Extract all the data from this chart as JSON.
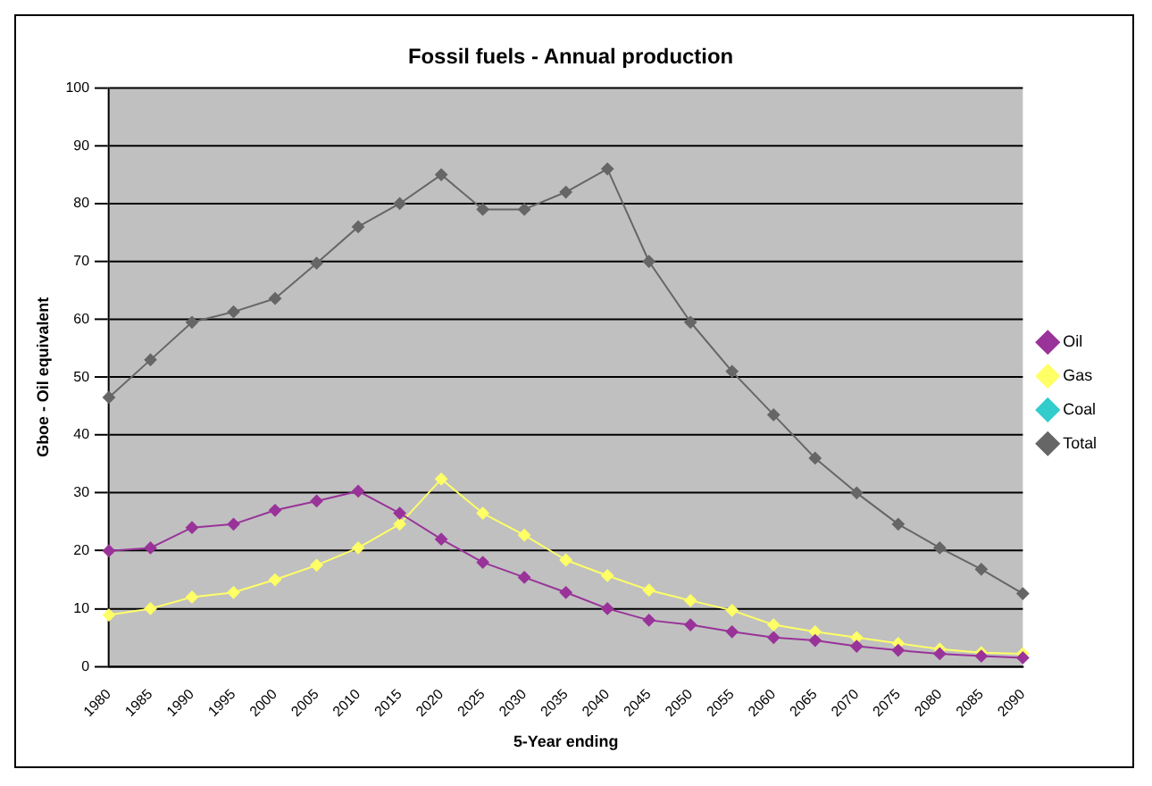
{
  "chart_data": {
    "type": "line",
    "title": "Fossil fuels - Annual production",
    "xlabel": "5-Year ending",
    "ylabel": "Gboe - Oil equivalent",
    "categories": [
      "1980",
      "1985",
      "1990",
      "1995",
      "2000",
      "2005",
      "2010",
      "2015",
      "2020",
      "2025",
      "2030",
      "2035",
      "2040",
      "2045",
      "2050",
      "2055",
      "2060",
      "2065",
      "2070",
      "2075",
      "2080",
      "2085",
      "2090"
    ],
    "series": [
      {
        "name": "Oil",
        "color": "#993399",
        "values": [
          20,
          20.5,
          24,
          24.6,
          27,
          28.6,
          30.3,
          26.5,
          22,
          18,
          15.4,
          12.8,
          10,
          8,
          7.2,
          6,
          5,
          4.5,
          3.5,
          2.8,
          2.2,
          1.8,
          1.5
        ]
      },
      {
        "name": "Gas",
        "color": "#ffff66",
        "values": [
          8.9,
          10,
          12,
          12.8,
          15,
          17.5,
          20.5,
          24.6,
          32.4,
          26.5,
          22.7,
          18.4,
          15.7,
          13.2,
          11.4,
          9.7,
          7.2,
          6,
          5,
          4,
          3,
          2.4,
          2.2
        ]
      },
      {
        "name": "Coal",
        "color": "#33cccc",
        "values": [
          null,
          null,
          null,
          null,
          null,
          null,
          null,
          null,
          null,
          null,
          null,
          null,
          null,
          null,
          null,
          null,
          null,
          null,
          null,
          null,
          null,
          null,
          null
        ]
      },
      {
        "name": "Total",
        "color": "#666666",
        "values": [
          46.5,
          53,
          59.5,
          61.3,
          63.6,
          69.7,
          76,
          80,
          85,
          79,
          79,
          82,
          86,
          70,
          59.5,
          51,
          43.5,
          36,
          30,
          24.6,
          20.5,
          16.8,
          12.6
        ]
      }
    ],
    "ylim": [
      0,
      100
    ],
    "yticks": [
      0,
      10,
      20,
      30,
      40,
      50,
      60,
      70,
      80,
      90,
      100
    ],
    "grid": "y",
    "legend": "right",
    "marker": "diamond",
    "line_style": "solid"
  }
}
